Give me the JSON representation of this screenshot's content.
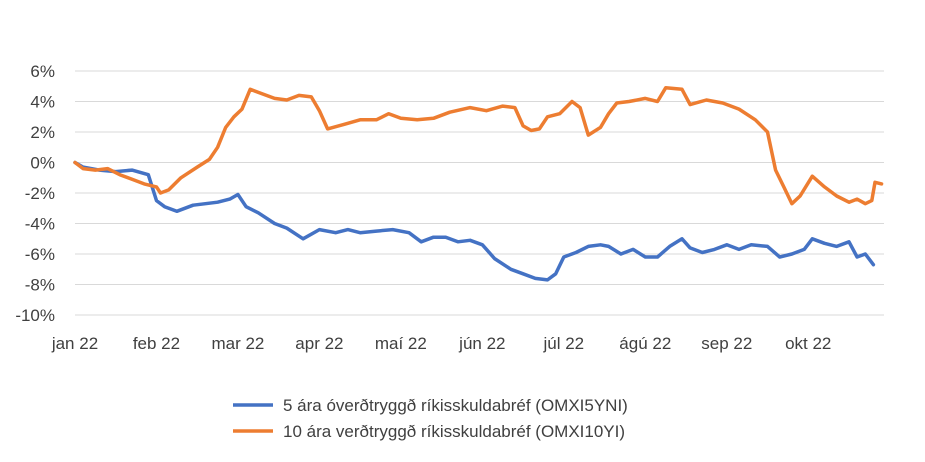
{
  "chart_data": {
    "type": "line",
    "title": "",
    "xlabel": "",
    "ylabel": "",
    "ylim": [
      -10,
      6
    ],
    "y_ticks": [
      6,
      4,
      2,
      0,
      -2,
      -4,
      -6,
      -8,
      -10
    ],
    "y_tick_labels": [
      "6%",
      "4%",
      "2%",
      "0%",
      "-2%",
      "-4%",
      "-6%",
      "-8%",
      "-10%"
    ],
    "x_tick_labels": [
      "jan 22",
      "feb 22",
      "mar 22",
      "apr 22",
      "maí 22",
      "jún 22",
      "júl 22",
      "ágú 22",
      "sep 22",
      "okt 22"
    ],
    "grid": "horizontal",
    "legend_position": "bottom",
    "series": [
      {
        "name": "5 ára óverðtryggð ríkisskuldabréf (OMXI5YNI)",
        "color": "#4472C4",
        "points": [
          [
            0.0,
            0.0
          ],
          [
            0.1,
            -0.3
          ],
          [
            0.3,
            -0.5
          ],
          [
            0.5,
            -0.6
          ],
          [
            0.7,
            -0.5
          ],
          [
            0.9,
            -0.8
          ],
          [
            1.0,
            -2.5
          ],
          [
            1.1,
            -2.9
          ],
          [
            1.25,
            -3.2
          ],
          [
            1.45,
            -2.8
          ],
          [
            1.6,
            -2.7
          ],
          [
            1.75,
            -2.6
          ],
          [
            1.9,
            -2.4
          ],
          [
            2.0,
            -2.1
          ],
          [
            2.1,
            -2.9
          ],
          [
            2.25,
            -3.3
          ],
          [
            2.45,
            -4.0
          ],
          [
            2.6,
            -4.3
          ],
          [
            2.8,
            -5.0
          ],
          [
            3.0,
            -4.4
          ],
          [
            3.2,
            -4.6
          ],
          [
            3.35,
            -4.4
          ],
          [
            3.5,
            -4.6
          ],
          [
            3.7,
            -4.5
          ],
          [
            3.9,
            -4.4
          ],
          [
            4.1,
            -4.6
          ],
          [
            4.25,
            -5.2
          ],
          [
            4.4,
            -4.9
          ],
          [
            4.55,
            -4.9
          ],
          [
            4.7,
            -5.2
          ],
          [
            4.85,
            -5.1
          ],
          [
            5.0,
            -5.4
          ],
          [
            5.15,
            -6.3
          ],
          [
            5.35,
            -7.0
          ],
          [
            5.5,
            -7.3
          ],
          [
            5.65,
            -7.6
          ],
          [
            5.8,
            -7.7
          ],
          [
            5.9,
            -7.3
          ],
          [
            6.0,
            -6.2
          ],
          [
            6.15,
            -5.9
          ],
          [
            6.3,
            -5.5
          ],
          [
            6.45,
            -5.4
          ],
          [
            6.55,
            -5.5
          ],
          [
            6.7,
            -6.0
          ],
          [
            6.85,
            -5.7
          ],
          [
            7.0,
            -6.2
          ],
          [
            7.15,
            -6.2
          ],
          [
            7.3,
            -5.5
          ],
          [
            7.45,
            -5.0
          ],
          [
            7.55,
            -5.6
          ],
          [
            7.7,
            -5.9
          ],
          [
            7.85,
            -5.7
          ],
          [
            8.0,
            -5.4
          ],
          [
            8.15,
            -5.7
          ],
          [
            8.3,
            -5.4
          ],
          [
            8.5,
            -5.5
          ],
          [
            8.65,
            -6.2
          ],
          [
            8.8,
            -6.0
          ],
          [
            8.95,
            -5.7
          ],
          [
            9.05,
            -5.0
          ],
          [
            9.2,
            -5.3
          ],
          [
            9.35,
            -5.5
          ],
          [
            9.5,
            -5.2
          ],
          [
            9.6,
            -6.2
          ],
          [
            9.7,
            -6.0
          ],
          [
            9.8,
            -6.7
          ]
        ]
      },
      {
        "name": "10 ára verðtryggð ríkisskuldabréf (OMXI10YI)",
        "color": "#ED7D31",
        "points": [
          [
            0.0,
            0.0
          ],
          [
            0.1,
            -0.4
          ],
          [
            0.25,
            -0.5
          ],
          [
            0.4,
            -0.4
          ],
          [
            0.55,
            -0.8
          ],
          [
            0.7,
            -1.1
          ],
          [
            0.85,
            -1.4
          ],
          [
            1.0,
            -1.6
          ],
          [
            1.05,
            -2.0
          ],
          [
            1.15,
            -1.8
          ],
          [
            1.3,
            -1.0
          ],
          [
            1.5,
            -0.3
          ],
          [
            1.65,
            0.2
          ],
          [
            1.75,
            1.0
          ],
          [
            1.85,
            2.3
          ],
          [
            1.95,
            3.0
          ],
          [
            2.05,
            3.5
          ],
          [
            2.15,
            4.8
          ],
          [
            2.3,
            4.5
          ],
          [
            2.45,
            4.2
          ],
          [
            2.6,
            4.1
          ],
          [
            2.75,
            4.4
          ],
          [
            2.9,
            4.3
          ],
          [
            3.0,
            3.4
          ],
          [
            3.1,
            2.2
          ],
          [
            3.3,
            2.5
          ],
          [
            3.5,
            2.8
          ],
          [
            3.7,
            2.8
          ],
          [
            3.85,
            3.2
          ],
          [
            4.0,
            2.9
          ],
          [
            4.2,
            2.8
          ],
          [
            4.4,
            2.9
          ],
          [
            4.6,
            3.3
          ],
          [
            4.85,
            3.6
          ],
          [
            5.05,
            3.4
          ],
          [
            5.25,
            3.7
          ],
          [
            5.4,
            3.6
          ],
          [
            5.5,
            2.4
          ],
          [
            5.6,
            2.1
          ],
          [
            5.7,
            2.2
          ],
          [
            5.8,
            3.0
          ],
          [
            5.95,
            3.2
          ],
          [
            6.1,
            4.0
          ],
          [
            6.2,
            3.6
          ],
          [
            6.3,
            1.8
          ],
          [
            6.45,
            2.3
          ],
          [
            6.55,
            3.2
          ],
          [
            6.65,
            3.9
          ],
          [
            6.8,
            4.0
          ],
          [
            7.0,
            4.2
          ],
          [
            7.15,
            4.0
          ],
          [
            7.25,
            4.9
          ],
          [
            7.45,
            4.8
          ],
          [
            7.55,
            3.8
          ],
          [
            7.75,
            4.1
          ],
          [
            7.95,
            3.9
          ],
          [
            8.15,
            3.5
          ],
          [
            8.35,
            2.8
          ],
          [
            8.5,
            2.0
          ],
          [
            8.6,
            -0.5
          ],
          [
            8.7,
            -1.6
          ],
          [
            8.8,
            -2.7
          ],
          [
            8.9,
            -2.2
          ],
          [
            9.05,
            -0.9
          ],
          [
            9.2,
            -1.6
          ],
          [
            9.35,
            -2.2
          ],
          [
            9.5,
            -2.6
          ],
          [
            9.6,
            -2.4
          ],
          [
            9.7,
            -2.7
          ],
          [
            9.78,
            -2.5
          ],
          [
            9.82,
            -1.3
          ],
          [
            9.9,
            -1.4
          ]
        ]
      }
    ]
  }
}
